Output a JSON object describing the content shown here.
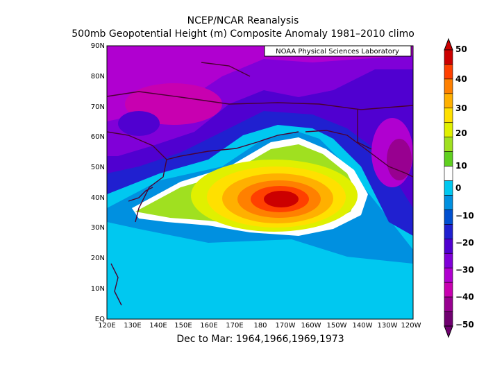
{
  "title_line1": "NCEP/NCAR Reanalysis",
  "title_line2": "500mb Geopotential Height (m) Composite Anomaly 1981–2010 climo",
  "credit": "NOAA Physical Sciences Laboratory",
  "subtitle": "Dec to Mar: 1964,1966,1969,1973",
  "lat_labels": [
    "90N",
    "80N",
    "70N",
    "60N",
    "50N",
    "40N",
    "30N",
    "20N",
    "10N",
    "EQ"
  ],
  "lon_labels": [
    "120E",
    "130E",
    "140E",
    "150E",
    "160E",
    "170E",
    "180",
    "170W",
    "160W",
    "150W",
    "140W",
    "130W",
    "120W"
  ],
  "colorbar": {
    "labels": [
      "50",
      "40",
      "30",
      "20",
      "10",
      "0",
      "−10",
      "−20",
      "−30",
      "−40",
      "−50"
    ],
    "colors": [
      "#cc0000",
      "#ff4000",
      "#ff8000",
      "#ffb000",
      "#ffe000",
      "#e0f000",
      "#a0e020",
      "#60d020",
      "#ffffff",
      "#00c8f0",
      "#0090e0",
      "#0050d0",
      "#2020d0",
      "#5000d0",
      "#8000d8",
      "#b000d0",
      "#c800b0",
      "#980090",
      "#700070"
    ],
    "top_color": "#cc0000",
    "bottom_color": "#700070"
  }
}
